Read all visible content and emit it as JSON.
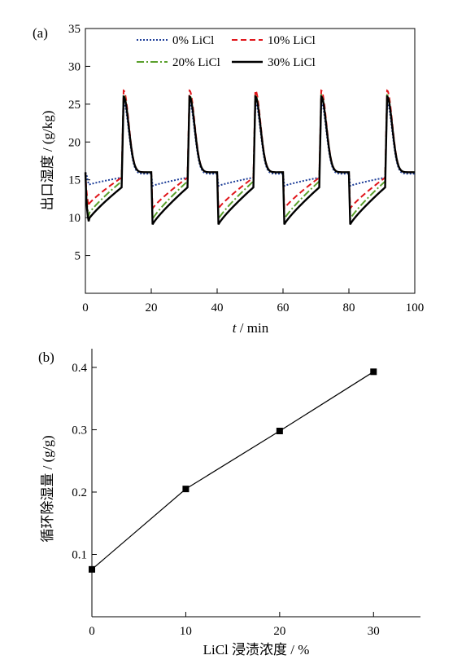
{
  "chart_data": [
    {
      "panel_label": "(a)",
      "type": "line",
      "xlabel_italic": "t",
      "xlabel": " / min",
      "ylabel": "出口湿度 / (g/kg)",
      "xlim": [
        0,
        100
      ],
      "ylim": [
        0,
        35
      ],
      "xticks": [
        0,
        20,
        40,
        60,
        80,
        100
      ],
      "yticks": [
        5,
        10,
        15,
        20,
        25,
        30,
        35
      ],
      "grid": false,
      "legend_position": "top",
      "cycle_period": 20,
      "regeneration_start_offset": 11,
      "series": [
        {
          "name": "0% LiCl",
          "color": "#1f3f99",
          "dash": "2,2",
          "regen_peak": 25.2,
          "regen_plateau": 15.8,
          "adsorption_start": 14.2,
          "adsorption_end": 15.3
        },
        {
          "name": "10% LiCl",
          "color": "#e0151a",
          "dash": "7,4",
          "regen_peak": 26.8,
          "regen_plateau": 16.0,
          "adsorption_start": 11.2,
          "adsorption_end": 15.3
        },
        {
          "name": "20% LiCl",
          "color": "#5aa02c",
          "dash": "9,3,2,3",
          "regen_peak": 26.2,
          "regen_plateau": 16.0,
          "adsorption_start": 9.8,
          "adsorption_end": 14.8
        },
        {
          "name": "30% LiCl",
          "color": "#000000",
          "dash": "",
          "regen_peak": 26.0,
          "regen_plateau": 16.0,
          "adsorption_start": 9.1,
          "adsorption_end": 14.0
        }
      ]
    },
    {
      "panel_label": "(b)",
      "type": "line",
      "xlabel": "LiCl 浸渍浓度 / %",
      "ylabel": "循环除湿量 / (g/g)",
      "xlim": [
        0,
        35
      ],
      "ylim": [
        0,
        0.43
      ],
      "xticks": [
        0,
        10,
        20,
        30
      ],
      "yticks": [
        0.1,
        0.2,
        0.3,
        0.4
      ],
      "grid": false,
      "x": [
        0,
        10,
        20,
        30
      ],
      "y": [
        0.076,
        0.205,
        0.298,
        0.393
      ],
      "marker": "square",
      "color": "#000000"
    }
  ]
}
